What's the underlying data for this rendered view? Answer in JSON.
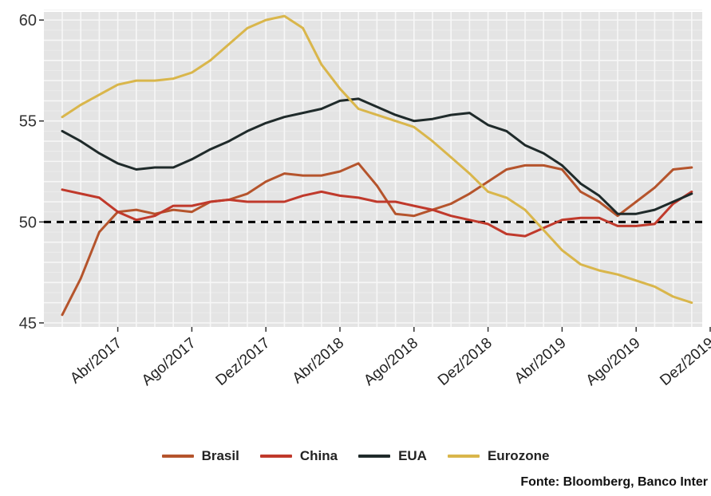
{
  "chart_data": {
    "type": "line",
    "title": "",
    "xlabel": "",
    "ylabel": "",
    "x": [
      "Jan/2017",
      "Fev/2017",
      "Mar/2017",
      "Abr/2017",
      "Mai/2017",
      "Jun/2017",
      "Jul/2017",
      "Ago/2017",
      "Set/2017",
      "Out/2017",
      "Nov/2017",
      "Dez/2017",
      "Jan/2018",
      "Fev/2018",
      "Mar/2018",
      "Abr/2018",
      "Mai/2018",
      "Jun/2018",
      "Jul/2018",
      "Ago/2018",
      "Set/2018",
      "Out/2018",
      "Nov/2018",
      "Dez/2018",
      "Jan/2019",
      "Fev/2019",
      "Mar/2019",
      "Abr/2019",
      "Mai/2019",
      "Jun/2019",
      "Jul/2019",
      "Ago/2019",
      "Set/2019",
      "Out/2019",
      "Nov/2019"
    ],
    "x_tick_labels": [
      "Abr/2017",
      "Ago/2017",
      "Dez/2017",
      "Abr/2018",
      "Ago/2018",
      "Dez/2018",
      "Abr/2019",
      "Ago/2019",
      "Dez/2019"
    ],
    "y_ticks": [
      45,
      50,
      55,
      60
    ],
    "ylim": [
      44.8,
      60.4
    ],
    "reference_line": 50,
    "grid": true,
    "legend_position": "bottom",
    "series": [
      {
        "name": "Brasil",
        "color": "#b5542c",
        "values": [
          45.4,
          47.2,
          49.5,
          50.5,
          50.6,
          50.4,
          50.6,
          50.5,
          51.0,
          51.1,
          51.4,
          52.0,
          52.4,
          52.3,
          52.3,
          52.5,
          52.9,
          51.8,
          50.4,
          50.3,
          50.6,
          50.9,
          51.4,
          52.0,
          52.6,
          52.8,
          52.8,
          52.6,
          51.5,
          51.0,
          50.3,
          51.0,
          51.7,
          52.6,
          52.7
        ]
      },
      {
        "name": "China",
        "color": "#c0392b",
        "values": [
          51.6,
          51.4,
          51.2,
          50.5,
          50.1,
          50.3,
          50.8,
          50.8,
          51.0,
          51.1,
          51.0,
          51.0,
          51.0,
          51.3,
          51.5,
          51.3,
          51.2,
          51.0,
          51.0,
          50.8,
          50.6,
          50.3,
          50.1,
          49.9,
          49.4,
          49.3,
          49.7,
          50.1,
          50.2,
          50.2,
          49.8,
          49.8,
          49.9,
          50.9,
          51.5
        ]
      },
      {
        "name": "EUA",
        "color": "#1f2a2a",
        "values": [
          54.5,
          54.0,
          53.4,
          52.9,
          52.6,
          52.7,
          52.7,
          53.1,
          53.6,
          54.0,
          54.5,
          54.9,
          55.2,
          55.4,
          55.6,
          56.0,
          56.1,
          55.7,
          55.3,
          55.0,
          55.1,
          55.3,
          55.4,
          54.8,
          54.5,
          53.8,
          53.4,
          52.8,
          51.9,
          51.3,
          50.4,
          50.4,
          50.6,
          51.0,
          51.4
        ]
      },
      {
        "name": "Eurozone",
        "color": "#d9b64b",
        "values": [
          55.2,
          55.8,
          56.3,
          56.8,
          57.0,
          57.0,
          57.1,
          57.4,
          58.0,
          58.8,
          59.6,
          60.0,
          60.2,
          59.6,
          57.8,
          56.6,
          55.6,
          55.3,
          55.0,
          54.7,
          54.0,
          53.2,
          52.4,
          51.5,
          51.2,
          50.6,
          49.6,
          48.6,
          47.9,
          47.6,
          47.4,
          47.1,
          46.8,
          46.3,
          46.0
        ]
      }
    ]
  },
  "source_text": "Fonte: Bloomberg, Banco Inter"
}
